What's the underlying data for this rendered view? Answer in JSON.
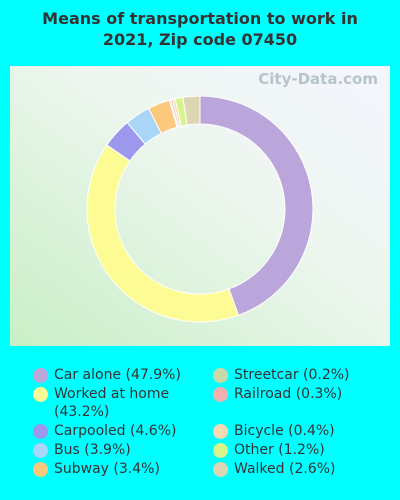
{
  "chart_data": {
    "type": "donut",
    "title": "Means of transportation to work in 2021, Zip code 07450",
    "watermark": "City-Data.com",
    "categories": [
      "Car alone",
      "Worked at home",
      "Carpooled",
      "Bus",
      "Subway",
      "Streetcar",
      "Railroad",
      "Bicycle",
      "Other",
      "Walked"
    ],
    "values": [
      47.9,
      43.2,
      4.6,
      3.9,
      3.4,
      0.2,
      0.3,
      0.4,
      1.2,
      2.6
    ],
    "value_labels": [
      "(47.9%)",
      "(43.2%)",
      "(4.6%)",
      "(3.9%)",
      "(3.4%)",
      "(0.2%)",
      "(0.3%)",
      "(0.4%)",
      "(1.2%)",
      "(2.6%)"
    ],
    "colors": [
      "#baa6da",
      "#fdfb94",
      "#9c98ee",
      "#a9d5f6",
      "#fcc87c",
      "#c9d9a9",
      "#f1b1b1",
      "#f6dbb2",
      "#d7f38b",
      "#ded6b2"
    ]
  }
}
